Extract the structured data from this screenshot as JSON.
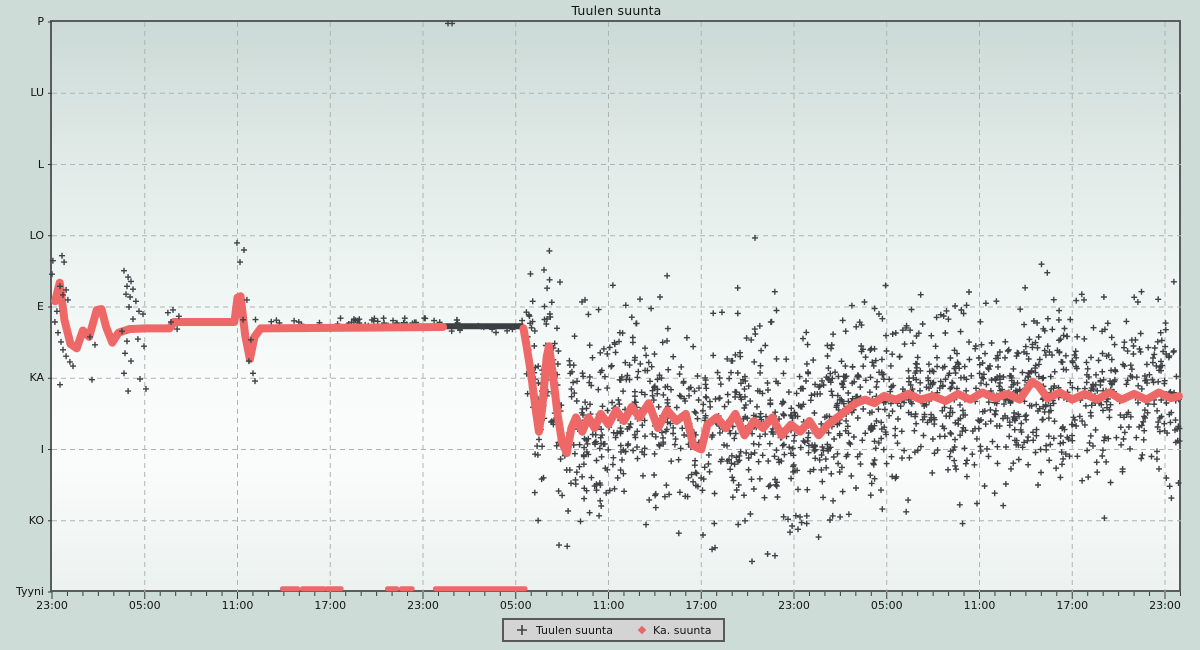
{
  "title": "Tuulen suunta",
  "colors": {
    "page_bg": "#cedcd8",
    "plot_border": "#5a5b5c",
    "grid": "#adb4b1",
    "marker_dark": "#3f4245",
    "marker_red": "#ee6868",
    "legend_bg": "#d3d4d3",
    "text": "#141414"
  },
  "legend": {
    "items": [
      {
        "label": "Tuulen suunta",
        "marker": "plus-icon",
        "color": "#3f4245"
      },
      {
        "label": "Ka. suunta",
        "marker": "diamond-icon",
        "color": "#e96565"
      }
    ]
  },
  "chart_data": {
    "type": "scatter",
    "title": "Tuulen suunta",
    "x_axis": {
      "unit": "time",
      "hours_span": 73,
      "minor_tick_every_hours": 1,
      "major_tick_every_hours": 6,
      "tick_hours": [
        0,
        6,
        12,
        18,
        24,
        30,
        36,
        42,
        48,
        54,
        60,
        66,
        72
      ],
      "tick_labels": [
        "23:00",
        "05:00",
        "11:00",
        "17:00",
        "23:00",
        "05:00",
        "11:00",
        "17:00",
        "23:00",
        "05:00",
        "11:00",
        "17:00",
        "23:00"
      ]
    },
    "y_axis": {
      "labels": [
        "P",
        "LU",
        "L",
        "LO",
        "E",
        "KA",
        "I",
        "KO",
        "Tyyni"
      ],
      "levels": [
        0,
        1,
        2,
        3,
        4,
        5,
        6,
        7,
        8
      ],
      "gridline_levels": [
        1,
        2,
        3,
        4,
        5,
        6,
        7
      ]
    },
    "series": [
      {
        "name": "Tuulen suunta",
        "marker": "plus",
        "color": "#3f4245",
        "left_points": [
          [
            0.06,
            3.35
          ],
          [
            0.0,
            3.54
          ],
          [
            0.65,
            3.28
          ],
          [
            0.78,
            3.37
          ],
          [
            0.52,
            3.71
          ],
          [
            0.91,
            3.76
          ],
          [
            0.71,
            3.83
          ],
          [
            1.03,
            3.9
          ],
          [
            0.32,
            4.06
          ],
          [
            0.19,
            4.21
          ],
          [
            0.39,
            4.36
          ],
          [
            0.58,
            4.49
          ],
          [
            0.71,
            4.6
          ],
          [
            0.91,
            4.69
          ],
          [
            1.16,
            4.77
          ],
          [
            0.52,
            5.09
          ],
          [
            1.36,
            4.83
          ],
          [
            2.59,
            5.02
          ],
          [
            2.46,
            4.42
          ],
          [
            2.78,
            4.53
          ],
          [
            4.66,
            3.49
          ],
          [
            4.92,
            3.58
          ],
          [
            5.11,
            3.64
          ],
          [
            4.85,
            3.71
          ],
          [
            5.24,
            3.75
          ],
          [
            4.79,
            3.82
          ],
          [
            5.05,
            3.86
          ],
          [
            5.43,
            3.92
          ],
          [
            4.98,
            4.0
          ],
          [
            5.63,
            4.06
          ],
          [
            5.89,
            4.1
          ],
          [
            5.24,
            4.17
          ],
          [
            4.53,
            4.34
          ],
          [
            4.85,
            4.48
          ],
          [
            4.72,
            4.65
          ],
          [
            5.11,
            4.76
          ],
          [
            4.66,
            4.93
          ],
          [
            4.92,
            5.18
          ],
          [
            5.69,
            5.01
          ],
          [
            5.56,
            4.45
          ],
          [
            5.95,
            4.55
          ],
          [
            6.08,
            5.15
          ],
          [
            7.5,
            4.08
          ],
          [
            7.83,
            4.04
          ],
          [
            8.21,
            4.13
          ],
          [
            7.7,
            4.21
          ],
          [
            8.09,
            4.31
          ],
          [
            11.97,
            3.1
          ],
          [
            12.42,
            3.2
          ],
          [
            12.16,
            3.37
          ],
          [
            12.61,
            3.9
          ],
          [
            12.87,
            4.46
          ],
          [
            12.74,
            4.76
          ],
          [
            13.0,
            4.93
          ],
          [
            13.13,
            5.04
          ],
          [
            12.36,
            4.18
          ],
          [
            25.62,
            0.02
          ],
          [
            25.88,
            0.02
          ]
        ],
        "flat_sparse": {
          "from_hour": 13.1,
          "to_hour": 18.6,
          "count": 10,
          "level": 4.22,
          "jitter_level": 0.05
        },
        "line_ticks": {
          "from_hour": 18.6,
          "to_hour": 25.3,
          "count": 45,
          "level": 4.21,
          "jitter_level": 0.055
        },
        "dark_segment": {
          "from_hour": 25.3,
          "to_hour": 30.5,
          "level": 4.27,
          "spur_count": 18,
          "spur_jitter_level": 0.09
        },
        "scatter": {
          "seed": 7,
          "count": 1600,
          "from_hour": 30.66,
          "to_hour": 72.95,
          "sigma_level": 0.6,
          "min_level": 2.9,
          "max_level": 7.75
        },
        "outliers": [
          [
            31.83,
            3.48
          ],
          [
            32.86,
            3.65
          ],
          [
            34.48,
            3.9
          ],
          [
            38.04,
            3.89
          ],
          [
            39.33,
            3.86
          ],
          [
            45.48,
            3.03
          ],
          [
            42.7,
            7.4
          ],
          [
            46.77,
            7.49
          ],
          [
            47.74,
            7.16
          ],
          [
            44.83,
            7.0
          ],
          [
            48.26,
            7.12
          ],
          [
            50.33,
            6.99
          ],
          [
            42.11,
            7.2
          ],
          [
            42.89,
            7.38
          ],
          [
            40.62,
            6.6
          ],
          [
            44.05,
            6.67
          ],
          [
            47.61,
            6.98
          ],
          [
            51.55,
            6.91
          ],
          [
            53.63,
            6.57
          ],
          [
            55.38,
            6.71
          ],
          [
            59.32,
            3.79
          ],
          [
            62.95,
            3.73
          ],
          [
            66.76,
            3.9
          ],
          [
            68.05,
            3.86
          ],
          [
            70.25,
            3.93
          ]
        ]
      },
      {
        "name": "Ka. suunta",
        "marker": "dot",
        "color": "#ee6868",
        "avg_line_points_1": [
          [
            0.2,
            3.92
          ],
          [
            0.5,
            3.66
          ],
          [
            0.8,
            4.18
          ],
          [
            1.2,
            4.52
          ],
          [
            1.6,
            4.58
          ],
          [
            2.0,
            4.33
          ],
          [
            2.4,
            4.42
          ],
          [
            2.9,
            4.04
          ],
          [
            3.2,
            4.03
          ],
          [
            3.5,
            4.28
          ],
          [
            3.9,
            4.5
          ],
          [
            4.3,
            4.36
          ],
          [
            5.0,
            4.31
          ],
          [
            6.0,
            4.3
          ],
          [
            7.6,
            4.3
          ],
          [
            7.9,
            4.21
          ],
          [
            11.8,
            4.21
          ],
          [
            12.0,
            3.87
          ],
          [
            12.2,
            3.85
          ],
          [
            12.5,
            4.4
          ],
          [
            12.8,
            4.73
          ],
          [
            13.1,
            4.42
          ],
          [
            13.5,
            4.3
          ],
          [
            25.3,
            4.28
          ]
        ],
        "avg_line_points_2": [
          [
            30.5,
            4.3
          ],
          [
            30.7,
            4.55
          ],
          [
            31.0,
            4.95
          ],
          [
            31.3,
            5.45
          ],
          [
            31.5,
            5.75
          ],
          [
            31.7,
            5.45
          ],
          [
            32.0,
            4.7
          ],
          [
            32.15,
            4.55
          ],
          [
            32.4,
            4.95
          ],
          [
            32.7,
            5.5
          ],
          [
            33.0,
            5.9
          ],
          [
            33.3,
            6.05
          ],
          [
            33.6,
            5.7
          ],
          [
            33.9,
            5.55
          ],
          [
            34.3,
            5.75
          ],
          [
            34.7,
            5.55
          ],
          [
            35.1,
            5.7
          ],
          [
            35.5,
            5.5
          ],
          [
            36.0,
            5.65
          ],
          [
            36.5,
            5.45
          ],
          [
            37.0,
            5.6
          ],
          [
            37.5,
            5.4
          ],
          [
            38.0,
            5.55
          ],
          [
            38.6,
            5.35
          ],
          [
            39.2,
            5.7
          ],
          [
            39.8,
            5.45
          ],
          [
            40.4,
            5.6
          ],
          [
            41.0,
            5.5
          ],
          [
            41.5,
            5.95
          ],
          [
            42.0,
            6.0
          ],
          [
            42.4,
            5.65
          ],
          [
            43.0,
            5.55
          ],
          [
            43.6,
            5.7
          ],
          [
            44.2,
            5.5
          ],
          [
            44.8,
            5.8
          ],
          [
            45.4,
            5.6
          ],
          [
            46.0,
            5.7
          ],
          [
            46.6,
            5.55
          ],
          [
            47.2,
            5.8
          ],
          [
            47.8,
            5.65
          ],
          [
            48.4,
            5.75
          ],
          [
            49.0,
            5.6
          ],
          [
            49.6,
            5.8
          ],
          [
            50.2,
            5.65
          ],
          [
            50.8,
            5.55
          ],
          [
            51.4,
            5.45
          ],
          [
            52.0,
            5.35
          ],
          [
            52.6,
            5.3
          ],
          [
            53.2,
            5.35
          ],
          [
            53.8,
            5.25
          ],
          [
            54.6,
            5.3
          ],
          [
            55.4,
            5.22
          ],
          [
            56.2,
            5.3
          ],
          [
            57.0,
            5.25
          ],
          [
            57.8,
            5.32
          ],
          [
            58.6,
            5.22
          ],
          [
            59.4,
            5.3
          ],
          [
            60.2,
            5.2
          ],
          [
            61.0,
            5.28
          ],
          [
            61.8,
            5.22
          ],
          [
            62.6,
            5.3
          ],
          [
            63.4,
            5.05
          ],
          [
            63.8,
            5.1
          ],
          [
            64.4,
            5.28
          ],
          [
            65.2,
            5.2
          ],
          [
            66.0,
            5.3
          ],
          [
            66.8,
            5.22
          ],
          [
            67.6,
            5.3
          ],
          [
            68.4,
            5.2
          ],
          [
            69.2,
            5.3
          ],
          [
            70.0,
            5.22
          ],
          [
            70.8,
            5.3
          ],
          [
            71.6,
            5.2
          ],
          [
            72.4,
            5.28
          ],
          [
            72.9,
            5.25
          ]
        ],
        "calm_level": 7.955,
        "calm_segments_hours": [
          [
            14.9,
            15.9
          ],
          [
            16.2,
            17.6
          ],
          [
            17.8,
            18.7
          ],
          [
            21.7,
            22.3
          ],
          [
            22.6,
            23.3
          ],
          [
            24.8,
            30.6
          ]
        ]
      }
    ]
  }
}
